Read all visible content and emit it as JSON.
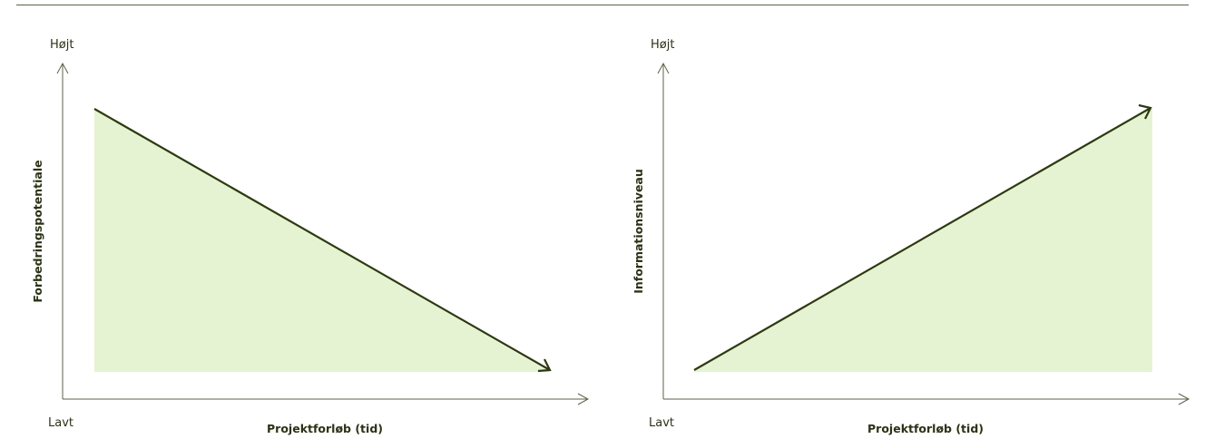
{
  "panels": [
    {
      "y_high": "Højt",
      "y_low": "Lavt",
      "y_label": "Forbedringspotentiale",
      "x_label": "Projektforløb (tid)"
    },
    {
      "y_high": "Højt",
      "y_low": "Lavt",
      "y_label": "Informationsniveau",
      "x_label": "Projektforløb (tid)"
    }
  ]
}
